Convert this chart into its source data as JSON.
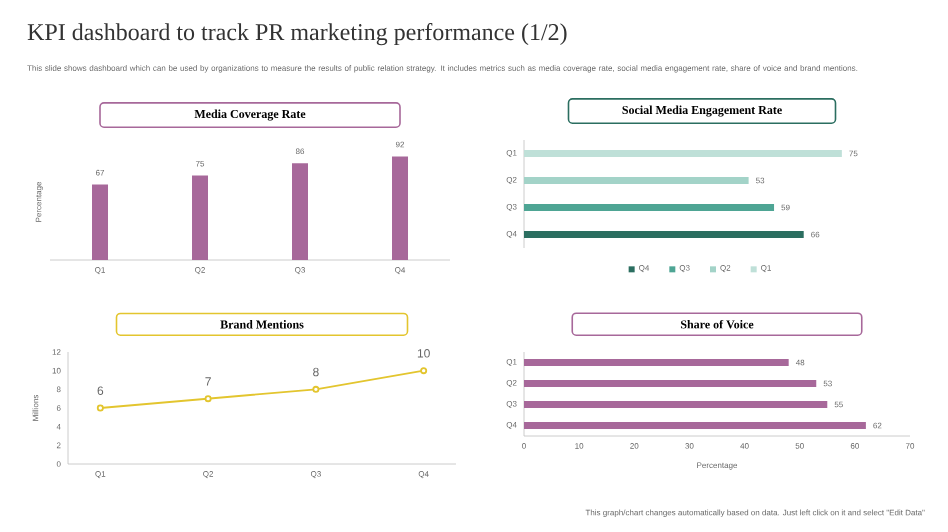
{
  "chart_data": [
    {
      "type": "bar",
      "title": "Media Coverage Rate",
      "ylabel": "Percentage",
      "categories": [
        "Q1",
        "Q2",
        "Q3",
        "Q4"
      ],
      "values": [
        67,
        75,
        86,
        92
      ],
      "color": "#a7689a",
      "data_labels": true,
      "tick_labels": "x",
      "annotations": [
        "KPI dashboard to track PR marketing performance (1/2)",
        "This slide shows dashboard which can be used by organizations to measure the results of public relation strategy. It includes metrics such as media coverage rate, social media engagement rate, share of voice and brand mentions."
      ]
    },
    {
      "type": "bar",
      "orientation": "horizontal",
      "title": "Social Media Engagement Rate",
      "categories": [
        "Q1",
        "Q2",
        "Q3",
        "Q4"
      ],
      "data_labels": true,
      "tick_labels": "y",
      "legend": "bottom",
      "series": [
        {
          "name": "Q4",
          "color": "#2b6e60",
          "values": [
            null,
            null,
            null,
            66
          ]
        },
        {
          "name": "Q3",
          "color": "#4ea594",
          "values": [
            null,
            null,
            59,
            null
          ]
        },
        {
          "name": "Q2",
          "color": "#a3d3c8",
          "values": [
            null,
            53,
            null,
            null
          ]
        },
        {
          "name": "Q1",
          "color": "#bfe0d8",
          "values": [
            75,
            null,
            null,
            null
          ]
        }
      ]
    },
    {
      "type": "line",
      "title": "Brand Mentions",
      "ylabel": "Millions",
      "categories": [
        "Q1",
        "Q2",
        "Q3",
        "Q4"
      ],
      "values": [
        6,
        7,
        8,
        10
      ],
      "color": "#e3c52e",
      "marker": "circle",
      "data_labels": true,
      "ylim": [
        0,
        12
      ],
      "yticks": [
        0,
        2,
        4,
        6,
        8,
        10,
        12
      ]
    },
    {
      "type": "bar",
      "orientation": "horizontal",
      "title": "Share of Voice",
      "xlabel": "Percentage",
      "categories": [
        "Q1",
        "Q2",
        "Q3",
        "Q4"
      ],
      "values": [
        48,
        53,
        55,
        62
      ],
      "color": "#a7689a",
      "data_labels": true,
      "xlim": [
        0,
        70
      ],
      "xticks": [
        0,
        10,
        20,
        30,
        40,
        50,
        60,
        70
      ],
      "annotations": [
        "This graph/chart changes automatically based on data. Just left click on it and select \"Edit Data\""
      ]
    }
  ]
}
